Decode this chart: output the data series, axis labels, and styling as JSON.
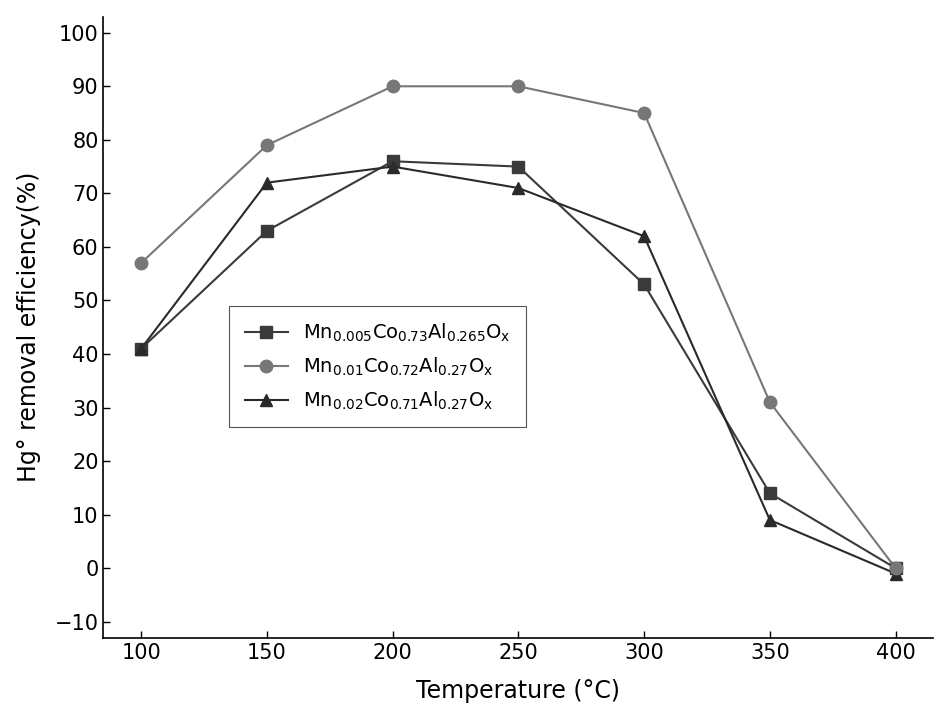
{
  "temperatures": [
    100,
    150,
    200,
    250,
    300,
    350,
    400
  ],
  "series1_values": [
    41,
    63,
    76,
    75,
    53,
    14,
    0
  ],
  "series2_values": [
    57,
    79,
    90,
    90,
    85,
    31,
    0
  ],
  "series3_values": [
    41,
    72,
    75,
    71,
    62,
    9,
    -1
  ],
  "series1_color": "#3a3a3a",
  "series2_color": "#777777",
  "series3_color": "#2a2a2a",
  "series1_marker": "s",
  "series2_marker": "o",
  "series3_marker": "^",
  "xlim": [
    85,
    415
  ],
  "ylim": [
    -13,
    103
  ],
  "xticks": [
    100,
    150,
    200,
    250,
    300,
    350,
    400
  ],
  "yticks": [
    -10,
    0,
    10,
    20,
    30,
    40,
    50,
    60,
    70,
    80,
    90,
    100
  ],
  "xlabel": "Temperature (°C)",
  "ylabel": "Hg° removal efficiency(%)",
  "background_color": "#ffffff",
  "markersize": 9,
  "linewidth": 1.5
}
